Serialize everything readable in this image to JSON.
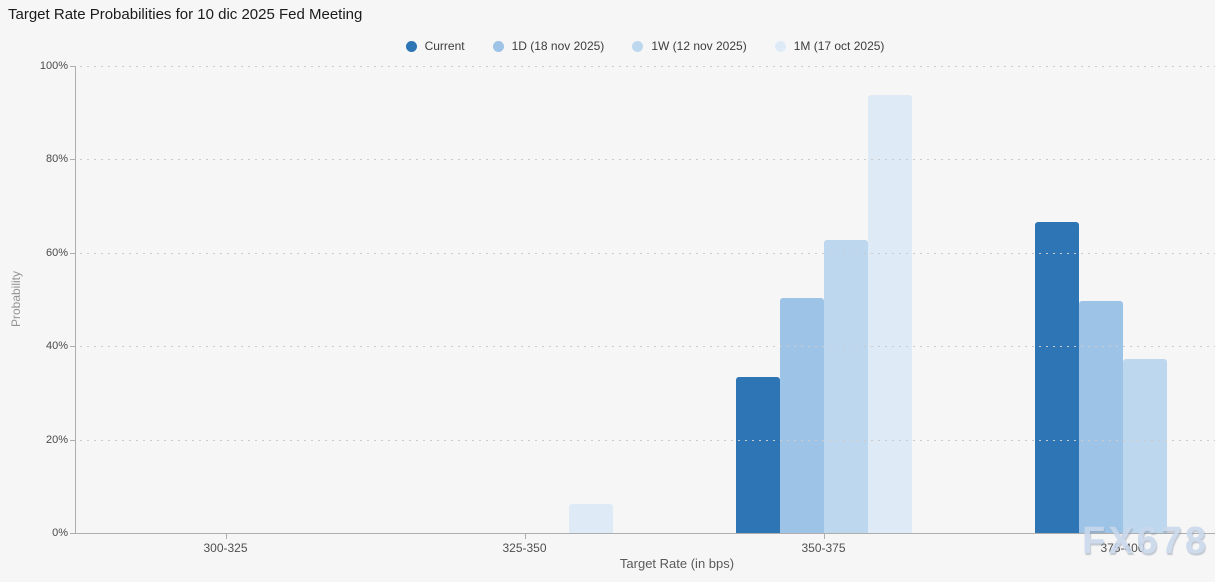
{
  "chart_data": {
    "type": "bar",
    "title": "Target Rate Probabilities for 10 dic 2025 Fed Meeting",
    "xlabel": "Target Rate (in bps)",
    "ylabel": "Probability",
    "categories": [
      "300-325",
      "325-350",
      "350-375",
      "375-400"
    ],
    "series": [
      {
        "name": "Current",
        "color": "#2e75b6",
        "values": [
          0,
          0,
          33.5,
          66.5
        ]
      },
      {
        "name": "1D (18 nov 2025)",
        "color": "#9dc3e6",
        "values": [
          0,
          0,
          50.3,
          49.7
        ]
      },
      {
        "name": "1W (12 nov 2025)",
        "color": "#bdd7ee",
        "values": [
          0,
          0,
          62.7,
          37.3
        ]
      },
      {
        "name": "1M (17 oct 2025)",
        "color": "#deebf7",
        "values": [
          0,
          6.3,
          93.7,
          0
        ]
      }
    ],
    "ylim": [
      0,
      100
    ],
    "yticks": [
      0,
      20,
      40,
      60,
      80,
      100
    ],
    "ytick_labels": [
      "0%",
      "20%",
      "40%",
      "60%",
      "80%",
      "100%"
    ],
    "grid": "horizontal-dotted",
    "legend_position": "top-center",
    "background_color": "#f6f6f6"
  },
  "watermark": "FX678"
}
